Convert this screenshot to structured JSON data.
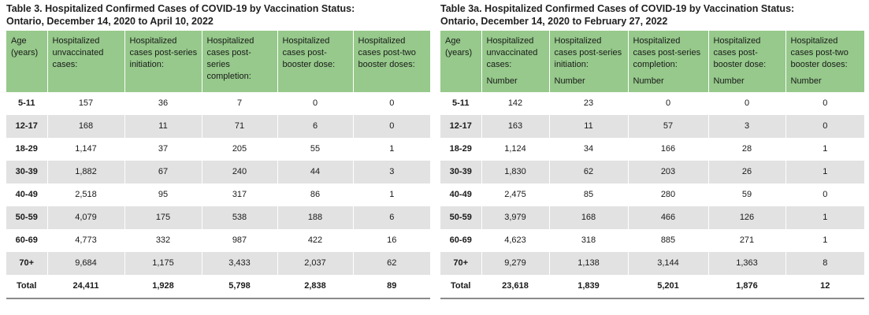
{
  "left": {
    "caption_line1": "Table 3. Hospitalized Confirmed Cases of COVID-19 by Vaccination Status:",
    "caption_line2": "Ontario, December 14, 2020 to April 10, 2022",
    "headers": [
      "Age (years)",
      "Hospitalized unvaccinated cases:",
      "Hospitalized cases post-series initiation:",
      "Hospitalized cases post-series completion:",
      "Hospitalized cases post-booster dose:",
      "Hospitalized cases post-two booster doses:"
    ],
    "rows": [
      [
        "5-11",
        "157",
        "36",
        "7",
        "0",
        "0"
      ],
      [
        "12-17",
        "168",
        "11",
        "71",
        "6",
        "0"
      ],
      [
        "18-29",
        "1,147",
        "37",
        "205",
        "55",
        "1"
      ],
      [
        "30-39",
        "1,882",
        "67",
        "240",
        "44",
        "3"
      ],
      [
        "40-49",
        "2,518",
        "95",
        "317",
        "86",
        "1"
      ],
      [
        "50-59",
        "4,079",
        "175",
        "538",
        "188",
        "6"
      ],
      [
        "60-69",
        "4,773",
        "332",
        "987",
        "422",
        "16"
      ],
      [
        "70+",
        "9,684",
        "1,175",
        "3,433",
        "2,037",
        "62"
      ],
      [
        "Total",
        "24,411",
        "1,928",
        "5,798",
        "2,838",
        "89"
      ]
    ]
  },
  "right": {
    "caption_line1": "Table 3a. Hospitalized Confirmed Cases of COVID-19 by Vaccination Status:",
    "caption_line2": "Ontario, December 14, 2020 to February 27, 2022",
    "headers": [
      "Age (years)",
      "Hospitalized unvaccinated cases:",
      "Hospitalized cases post-series initiation:",
      "Hospitalized cases post-series completion:",
      "Hospitalized cases post-booster dose:",
      "Hospitalized cases post-two booster doses:"
    ],
    "unit_label": "Number",
    "rows": [
      [
        "5-11",
        "142",
        "23",
        "0",
        "0",
        "0"
      ],
      [
        "12-17",
        "163",
        "11",
        "57",
        "3",
        "0"
      ],
      [
        "18-29",
        "1,124",
        "34",
        "166",
        "28",
        "1"
      ],
      [
        "30-39",
        "1,830",
        "62",
        "203",
        "26",
        "1"
      ],
      [
        "40-49",
        "2,475",
        "85",
        "280",
        "59",
        "0"
      ],
      [
        "50-59",
        "3,979",
        "168",
        "466",
        "126",
        "1"
      ],
      [
        "60-69",
        "4,623",
        "318",
        "885",
        "271",
        "1"
      ],
      [
        "70+",
        "9,279",
        "1,138",
        "3,144",
        "1,363",
        "8"
      ],
      [
        "Total",
        "23,618",
        "1,839",
        "5,201",
        "1,876",
        "12"
      ]
    ]
  }
}
